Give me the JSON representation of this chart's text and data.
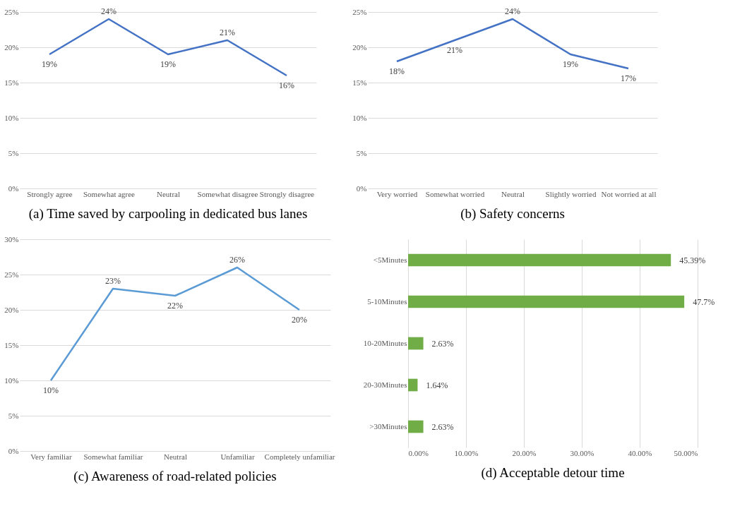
{
  "chart_data": [
    {
      "type": "line",
      "title": "(a) Time saved by carpooling in dedicated bus lanes",
      "categories": [
        "Strongly agree",
        "Somewhat agree",
        "Neutral",
        "Somewhat disagree",
        "Strongly disagree"
      ],
      "values": [
        19,
        24,
        19,
        21,
        16
      ],
      "value_labels": [
        "19%",
        "24%",
        "19%",
        "21%",
        "16%"
      ],
      "color": "#4472c4",
      "ylim": [
        0,
        25
      ],
      "yticks": [
        {
          "value": 0,
          "label": "0%"
        },
        {
          "value": 5,
          "label": "5%"
        },
        {
          "value": 10,
          "label": "10%"
        },
        {
          "value": 15,
          "label": "15%"
        },
        {
          "value": 20,
          "label": "20%"
        },
        {
          "value": 25,
          "label": "25%"
        }
      ],
      "grid": "y",
      "marker": "none",
      "line_style": "solid"
    },
    {
      "type": "line",
      "title": "(b) Safety concerns",
      "categories": [
        "Very worried",
        "Somewhat worried",
        "Neutral",
        "Slightly worried",
        "Not worried at all"
      ],
      "values": [
        18,
        21,
        24,
        19,
        17
      ],
      "value_labels": [
        "18%",
        "21%",
        "24%",
        "19%",
        "17%"
      ],
      "color": "#4472c4",
      "ylim": [
        0,
        25
      ],
      "yticks": [
        {
          "value": 0,
          "label": "0%"
        },
        {
          "value": 5,
          "label": "5%"
        },
        {
          "value": 10,
          "label": "10%"
        },
        {
          "value": 15,
          "label": "15%"
        },
        {
          "value": 20,
          "label": "20%"
        },
        {
          "value": 25,
          "label": "25%"
        }
      ],
      "grid": "y",
      "marker": "none",
      "line_style": "solid"
    },
    {
      "type": "line",
      "title": "(c) Awareness of road-related policies",
      "categories": [
        "Very familiar",
        "Somewhat familiar",
        "Neutral",
        "Unfamiliar",
        "Completely unfamiliar"
      ],
      "values": [
        10,
        23,
        22,
        26,
        20
      ],
      "value_labels": [
        "10%",
        "23%",
        "22%",
        "26%",
        "20%"
      ],
      "color": "#5b9bd5",
      "ylim": [
        0,
        30
      ],
      "yticks": [
        {
          "value": 0,
          "label": "0%"
        },
        {
          "value": 5,
          "label": "5%"
        },
        {
          "value": 10,
          "label": "10%"
        },
        {
          "value": 15,
          "label": "15%"
        },
        {
          "value": 20,
          "label": "20%"
        },
        {
          "value": 25,
          "label": "25%"
        },
        {
          "value": 30,
          "label": "30%"
        }
      ],
      "grid": "y",
      "marker": "none",
      "line_style": "solid"
    },
    {
      "type": "bar",
      "orientation": "horizontal",
      "title": "(d) Acceptable detour time",
      "categories": [
        "<5Minutes",
        "5-10Minutes",
        "10-20Minutes",
        "20-30Minutes",
        ">30Minutes"
      ],
      "values": [
        45.39,
        47.7,
        2.63,
        1.64,
        2.63
      ],
      "value_labels": [
        "45.39%",
        "47.7%",
        "2.63%",
        "1.64%",
        "2.63%"
      ],
      "color": "#70ad47",
      "xlim": [
        0,
        50
      ],
      "xticks": [
        {
          "value": 0,
          "label": "0.00%"
        },
        {
          "value": 10,
          "label": "10.00%"
        },
        {
          "value": 20,
          "label": "20.00%"
        },
        {
          "value": 30,
          "label": "30.00%"
        },
        {
          "value": 40,
          "label": "40.00%"
        },
        {
          "value": 50,
          "label": "50.00%"
        }
      ],
      "grid": "x"
    }
  ]
}
